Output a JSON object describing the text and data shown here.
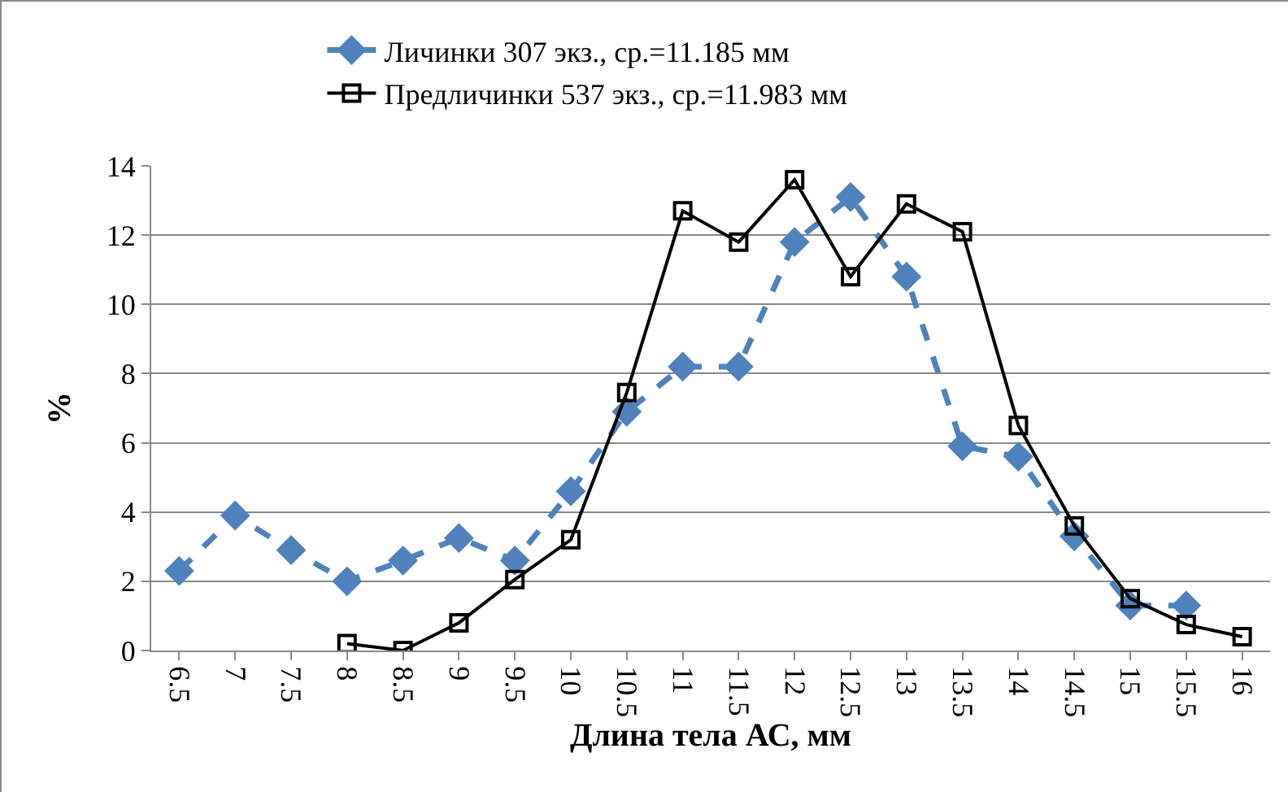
{
  "chart_data": {
    "type": "line",
    "xlabel": "Длина тела АС, мм",
    "ylabel": "%",
    "categories": [
      "6.5",
      "7",
      "7.5",
      "8",
      "8.5",
      "9",
      "9.5",
      "10",
      "10.5",
      "11",
      "11.5",
      "12",
      "12.5",
      "13",
      "13.5",
      "14",
      "14.5",
      "15",
      "15.5",
      "16"
    ],
    "series": [
      {
        "name": "Личинки 307 экз., ср.=11.185 мм",
        "color": "#4f81bd",
        "marker": "diamond",
        "line_style": "dashed",
        "values": [
          2.3,
          3.9,
          2.9,
          2.0,
          2.6,
          3.25,
          2.6,
          4.6,
          6.9,
          8.2,
          8.2,
          11.8,
          13.1,
          10.8,
          5.9,
          5.6,
          3.3,
          1.3,
          1.3,
          null
        ]
      },
      {
        "name": "Предличинки 537 экз., ср.=11.983 мм",
        "color": "#000000",
        "marker": "square",
        "line_style": "solid",
        "values": [
          null,
          null,
          null,
          0.2,
          0,
          0.8,
          2.05,
          3.2,
          7.45,
          12.7,
          11.8,
          13.6,
          10.8,
          12.9,
          12.1,
          6.5,
          3.6,
          1.5,
          0.75,
          0.4
        ]
      }
    ],
    "ylim": [
      0,
      14
    ],
    "yticks": [
      0,
      2,
      4,
      6,
      8,
      10,
      12,
      14
    ],
    "grid": "y",
    "legend": "top"
  }
}
